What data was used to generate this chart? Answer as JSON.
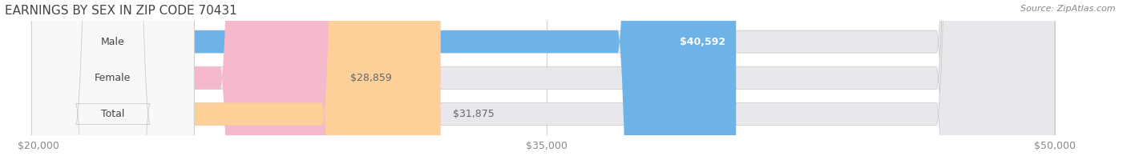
{
  "title": "EARNINGS BY SEX IN ZIP CODE 70431",
  "source": "Source: ZipAtlas.com",
  "categories": [
    "Male",
    "Female",
    "Total"
  ],
  "values": [
    40592,
    28859,
    31875
  ],
  "bar_colors": [
    "#6db3e8",
    "#f5b8cb",
    "#fdd09a"
  ],
  "bar_bg_color": "#e8e8ec",
  "value_labels": [
    "$40,592",
    "$28,859",
    "$31,875"
  ],
  "value_label_colors": [
    "white",
    "#666666",
    "#666666"
  ],
  "xlim_min": 20000,
  "xlim_max": 50000,
  "xticks": [
    20000,
    35000,
    50000
  ],
  "xtick_labels": [
    "$20,000",
    "$35,000",
    "$50,000"
  ],
  "title_fontsize": 11,
  "tick_fontsize": 9,
  "bar_label_fontsize": 9,
  "value_fontsize": 9,
  "source_fontsize": 8,
  "bar_height": 0.62,
  "background_color": "#ffffff",
  "grid_color": "#d0d0d0",
  "label_pill_color": "#f8f8f8",
  "label_pill_edge": "#cccccc"
}
